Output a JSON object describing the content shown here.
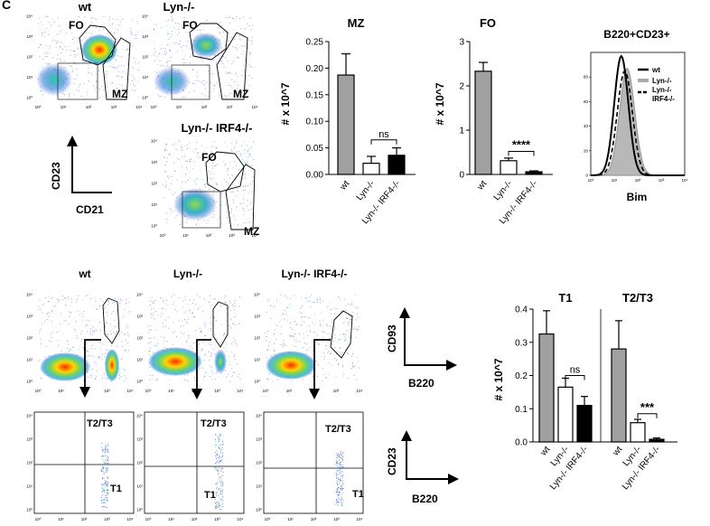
{
  "figure_label": "C",
  "facs": {
    "top_rows": [
      "wt",
      "Lyn-/-",
      "Lyn-/- IRF4-/-"
    ],
    "gate_fo": "FO",
    "gate_mz": "MZ",
    "axis_y": "CD23",
    "axis_x": "CD21"
  },
  "bottom_facs": {
    "titles": [
      "wt",
      "Lyn-/-",
      "Lyn-/- IRF4-/-"
    ],
    "cd93_axis_y": "CD93",
    "cd93_axis_x": "B220",
    "cd23_axis_y": "CD23",
    "cd23_axis_x": "B220",
    "quad_upper": "T2/T3",
    "quad_lower": "T1"
  },
  "tick_labels_log": [
    "10⁰",
    "10¹",
    "10²",
    "10³",
    "10⁴"
  ],
  "colors": {
    "wt": "#a0a0a0",
    "lyn": "#ffffff",
    "dko": "#000000"
  },
  "chart_data": [
    {
      "type": "bar",
      "title": "MZ",
      "categories": [
        "wt",
        "Lyn-/-",
        "Lyn-/- IRF4-/-"
      ],
      "values": [
        0.187,
        0.021,
        0.036
      ],
      "errors": [
        0.04,
        0.013,
        0.014
      ],
      "ylabel": "# x 10^7",
      "ylim": [
        0,
        0.25
      ],
      "yticks": [
        "0.00",
        "0.05",
        "0.10",
        "0.15",
        "0.20",
        "0.25"
      ],
      "annotation": "ns"
    },
    {
      "type": "bar",
      "title": "FO",
      "categories": [
        "wt",
        "Lyn-/-",
        "Lyn-/- IRF4-/-"
      ],
      "values": [
        2.33,
        0.31,
        0.06
      ],
      "errors": [
        0.2,
        0.06,
        0.02
      ],
      "ylabel": "# x 10^7",
      "ylim": [
        0,
        3
      ],
      "yticks": [
        "0",
        "1",
        "2",
        "3"
      ],
      "annotation": "****"
    },
    {
      "type": "line",
      "title": "B220+CD23+",
      "xlabel": "Bim",
      "y_ticks": [
        "0",
        "20",
        "40",
        "60",
        "80"
      ],
      "legend": [
        "wt",
        "Lyn-/-",
        "Lyn-/- IRF4-/-"
      ],
      "series": [
        {
          "name": "wt",
          "peak_decade": 1.3,
          "width": 0.3,
          "height": 97
        },
        {
          "name": "Lyn-/-",
          "peak_decade": 1.55,
          "width": 0.32,
          "height": 87
        },
        {
          "name": "Lyn-/- IRF4-/-",
          "peak_decade": 1.45,
          "width": 0.32,
          "height": 85
        }
      ]
    },
    {
      "type": "bar",
      "groups": [
        "T1",
        "T2/T3"
      ],
      "categories": [
        "wt",
        "Lyn-/-",
        "Lyn-/- IRF4-/-"
      ],
      "series": [
        {
          "name": "T1",
          "values": [
            0.325,
            0.165,
            0.11
          ],
          "errors": [
            0.07,
            0.027,
            0.027
          ]
        },
        {
          "name": "T2/T3",
          "values": [
            0.28,
            0.058,
            0.008
          ],
          "errors": [
            0.085,
            0.01,
            0.004
          ]
        }
      ],
      "ylabel": "# x 10^7",
      "ylim": [
        0,
        0.4
      ],
      "yticks": [
        "0.0",
        "0.1",
        "0.2",
        "0.3",
        "0.4"
      ],
      "annotations": [
        "ns",
        "***"
      ]
    }
  ]
}
